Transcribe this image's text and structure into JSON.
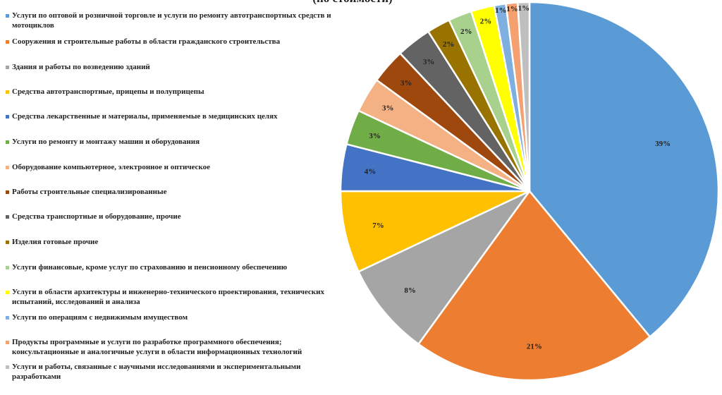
{
  "chart_data": {
    "type": "pie",
    "title": "(по стоимости)",
    "start": "top, clockwise",
    "legend_position": "left",
    "slices": [
      {
        "label": "Услуги по оптовой и розничной торговле и услуги по ремонту автотранспортных средств и мотоциклов",
        "value": 39,
        "text": "39%",
        "color": "#5B9BD5"
      },
      {
        "label": "Сооружения и строительные работы в области гражданского строительства",
        "value": 21,
        "text": "21%",
        "color": "#ED7D31"
      },
      {
        "label": "Здания и работы по возведению зданий",
        "value": 8,
        "text": "8%",
        "color": "#A5A5A5"
      },
      {
        "label": "Средства автотранспортные, прицепы и полуприцепы",
        "value": 7,
        "text": "7%",
        "color": "#FFC000"
      },
      {
        "label": "Средства лекарственные и материалы, применяемые в медицинских целях",
        "value": 4,
        "text": "4%",
        "color": "#4472C4"
      },
      {
        "label": "Услуги по ремонту и монтажу машин и оборудования",
        "value": 3,
        "text": "3%",
        "color": "#70AD47"
      },
      {
        "label": "Оборудование компьютерное, электронное и оптическое",
        "value": 3,
        "text": "3%",
        "color": "#F4B183"
      },
      {
        "label": "Работы строительные специализированные",
        "value": 3,
        "text": "3%",
        "color": "#9E480E"
      },
      {
        "label": "Средства транспортные и оборудование, прочие",
        "value": 3,
        "text": "3%",
        "color": "#636363"
      },
      {
        "label": "Изделия готовые прочие",
        "value": 2,
        "text": "2%",
        "color": "#997300"
      },
      {
        "label": "Услуги финансовые, кроме услуг по страхованию и пенсионному обеспечению",
        "value": 2,
        "text": "2%",
        "color": "#A9D18E"
      },
      {
        "label": "Услуги в области архитектуры и инженерно-технического проектирования, технических испытаний, исследований и анализа",
        "value": 2,
        "text": "2%",
        "color": "#FFFF00"
      },
      {
        "label": "Услуги по операциям с недвижимым имуществом",
        "value": 1,
        "text": "1%",
        "color": "#7FAEE0"
      },
      {
        "label": "Продукты программные и услуги по разработке программного обеспечения; консультационные и аналогичные услуги в области информационных технологий",
        "value": 1,
        "text": "1%",
        "color": "#F4A070"
      },
      {
        "label": "Услуги и работы, связанные с научными исследованиями и экспериментальными разработками",
        "value": 1,
        "text": "1%",
        "color": "#BFBFBF"
      }
    ]
  }
}
